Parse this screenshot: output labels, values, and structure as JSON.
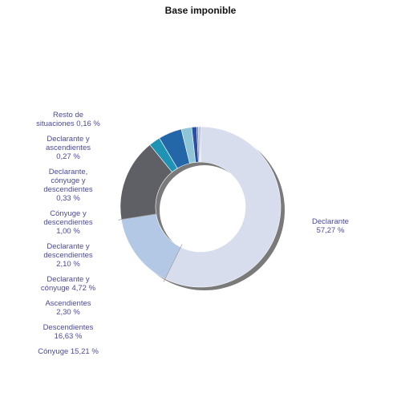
{
  "chart_data": {
    "type": "pie",
    "variant": "donut",
    "title": "Base imponible",
    "slices": [
      {
        "label": [
          "Declarante",
          "57,27 %"
        ],
        "value": 57.27,
        "color": "#d8ddee"
      },
      {
        "label": [
          "Cónyuge 15,21 %"
        ],
        "value": 15.21,
        "color": "#b3c8e5"
      },
      {
        "label": [
          "Descendientes",
          "16,63 %"
        ],
        "value": 16.63,
        "color": "#5e6065"
      },
      {
        "label": [
          "Ascendientes",
          "2,30 %"
        ],
        "value": 2.3,
        "color": "#1f93b3"
      },
      {
        "label": [
          "Declarante y",
          "cónyuge 4,72 %"
        ],
        "value": 4.72,
        "color": "#2367a8"
      },
      {
        "label": [
          "Declarante y",
          "descendientes",
          "2,10 %"
        ],
        "value": 2.1,
        "color": "#8ec6d8"
      },
      {
        "label": [
          "Cónyuge y",
          "descendientes",
          "1,00 %"
        ],
        "value": 1.0,
        "color": "#2c4ea6"
      },
      {
        "label": [
          "Declarante,",
          "cónyuge y",
          "descendientes",
          "0,33 %"
        ],
        "value": 0.33,
        "color": "#7d7f84"
      },
      {
        "label": [
          "Declarante y",
          "ascendientes",
          "0,27 %"
        ],
        "value": 0.27,
        "color": "#9fb4d8"
      },
      {
        "label": [
          "Resto de",
          "situaciones 0,16 %"
        ],
        "value": 0.16,
        "color": "#3a3a3a"
      }
    ]
  }
}
